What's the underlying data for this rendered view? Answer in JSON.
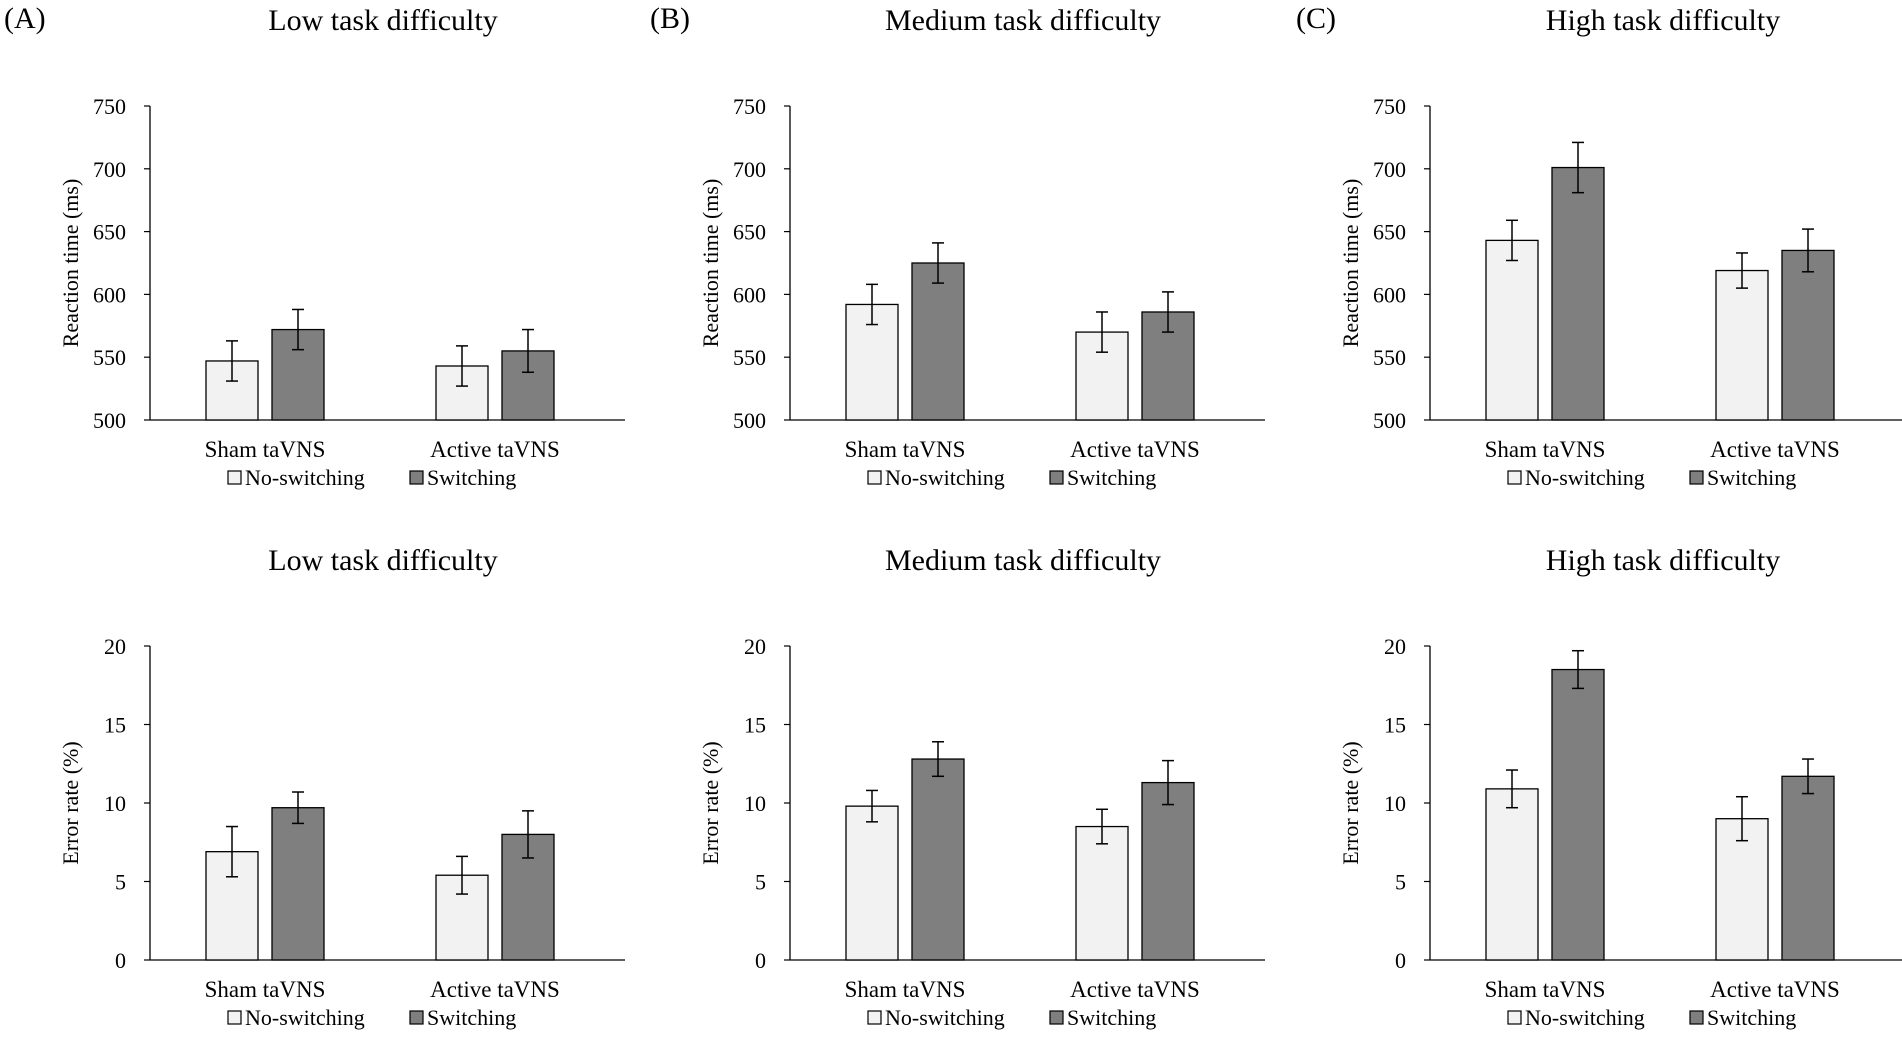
{
  "panel_labels": [
    "(A)",
    "(B)",
    "(C)"
  ],
  "legend_labels": [
    "No-switching",
    "Switching"
  ],
  "colors": {
    "no_switching": "#f2f2f2",
    "switching": "#7f7f7f",
    "stroke": "#000000"
  },
  "chart_data": [
    {
      "type": "bar",
      "panel": "(A)",
      "title": "Low task difficulty",
      "xlabel": "",
      "ylabel": "Reaction time (ms)",
      "categories": [
        "Sham taVNS",
        "Active taVNS"
      ],
      "series": [
        {
          "name": "No-switching",
          "values": [
            547,
            543
          ],
          "errors": [
            16,
            16
          ]
        },
        {
          "name": "Switching",
          "values": [
            572,
            555
          ],
          "errors": [
            16,
            17
          ]
        }
      ],
      "ylim": [
        500,
        750
      ],
      "yticks": [
        500,
        550,
        600,
        650,
        700,
        750
      ],
      "grid": false,
      "legend": "bottom"
    },
    {
      "type": "bar",
      "panel": "(B)",
      "title": "Medium task difficulty",
      "xlabel": "",
      "ylabel": "Reaction time (ms)",
      "categories": [
        "Sham taVNS",
        "Active taVNS"
      ],
      "series": [
        {
          "name": "No-switching",
          "values": [
            592,
            570
          ],
          "errors": [
            16,
            16
          ]
        },
        {
          "name": "Switching",
          "values": [
            625,
            586
          ],
          "errors": [
            16,
            16
          ]
        }
      ],
      "ylim": [
        500,
        750
      ],
      "yticks": [
        500,
        550,
        600,
        650,
        700,
        750
      ],
      "grid": false,
      "legend": "bottom"
    },
    {
      "type": "bar",
      "panel": "(C)",
      "title": "High task difficulty",
      "xlabel": "",
      "ylabel": "Reaction time (ms)",
      "categories": [
        "Sham taVNS",
        "Active taVNS"
      ],
      "series": [
        {
          "name": "No-switching",
          "values": [
            643,
            619
          ],
          "errors": [
            16,
            14
          ]
        },
        {
          "name": "Switching",
          "values": [
            701,
            635
          ],
          "errors": [
            20,
            17
          ]
        }
      ],
      "ylim": [
        500,
        750
      ],
      "yticks": [
        500,
        550,
        600,
        650,
        700,
        750
      ],
      "grid": false,
      "legend": "bottom"
    },
    {
      "type": "bar",
      "panel": "(A)",
      "title": "Low task difficulty",
      "xlabel": "",
      "ylabel": "Error rate (%)",
      "categories": [
        "Sham taVNS",
        "Active taVNS"
      ],
      "series": [
        {
          "name": "No-switching",
          "values": [
            6.9,
            5.4
          ],
          "errors": [
            1.6,
            1.2
          ]
        },
        {
          "name": "Switching",
          "values": [
            9.7,
            8.0
          ],
          "errors": [
            1.0,
            1.5
          ]
        }
      ],
      "ylim": [
        0,
        20
      ],
      "yticks": [
        0,
        5,
        10,
        15,
        20
      ],
      "grid": false,
      "legend": "bottom"
    },
    {
      "type": "bar",
      "panel": "(B)",
      "title": "Medium task difficulty",
      "xlabel": "",
      "ylabel": "Error rate  (%)",
      "categories": [
        "Sham taVNS",
        "Active taVNS"
      ],
      "series": [
        {
          "name": "No-switching",
          "values": [
            9.8,
            8.5
          ],
          "errors": [
            1.0,
            1.1
          ]
        },
        {
          "name": "Switching",
          "values": [
            12.8,
            11.3
          ],
          "errors": [
            1.1,
            1.4
          ]
        }
      ],
      "ylim": [
        0,
        20
      ],
      "yticks": [
        0,
        5,
        10,
        15,
        20
      ],
      "grid": false,
      "legend": "bottom"
    },
    {
      "type": "bar",
      "panel": "(C)",
      "title": "High task difficulty",
      "xlabel": "",
      "ylabel": "Error rate (%)",
      "categories": [
        "Sham taVNS",
        "Active taVNS"
      ],
      "series": [
        {
          "name": "No-switching",
          "values": [
            10.9,
            9.0
          ],
          "errors": [
            1.2,
            1.4
          ]
        },
        {
          "name": "Switching",
          "values": [
            18.5,
            11.7
          ],
          "errors": [
            1.2,
            1.1
          ]
        }
      ],
      "ylim": [
        0,
        20
      ],
      "yticks": [
        0,
        5,
        10,
        15,
        20
      ],
      "grid": false,
      "legend": "bottom"
    }
  ]
}
